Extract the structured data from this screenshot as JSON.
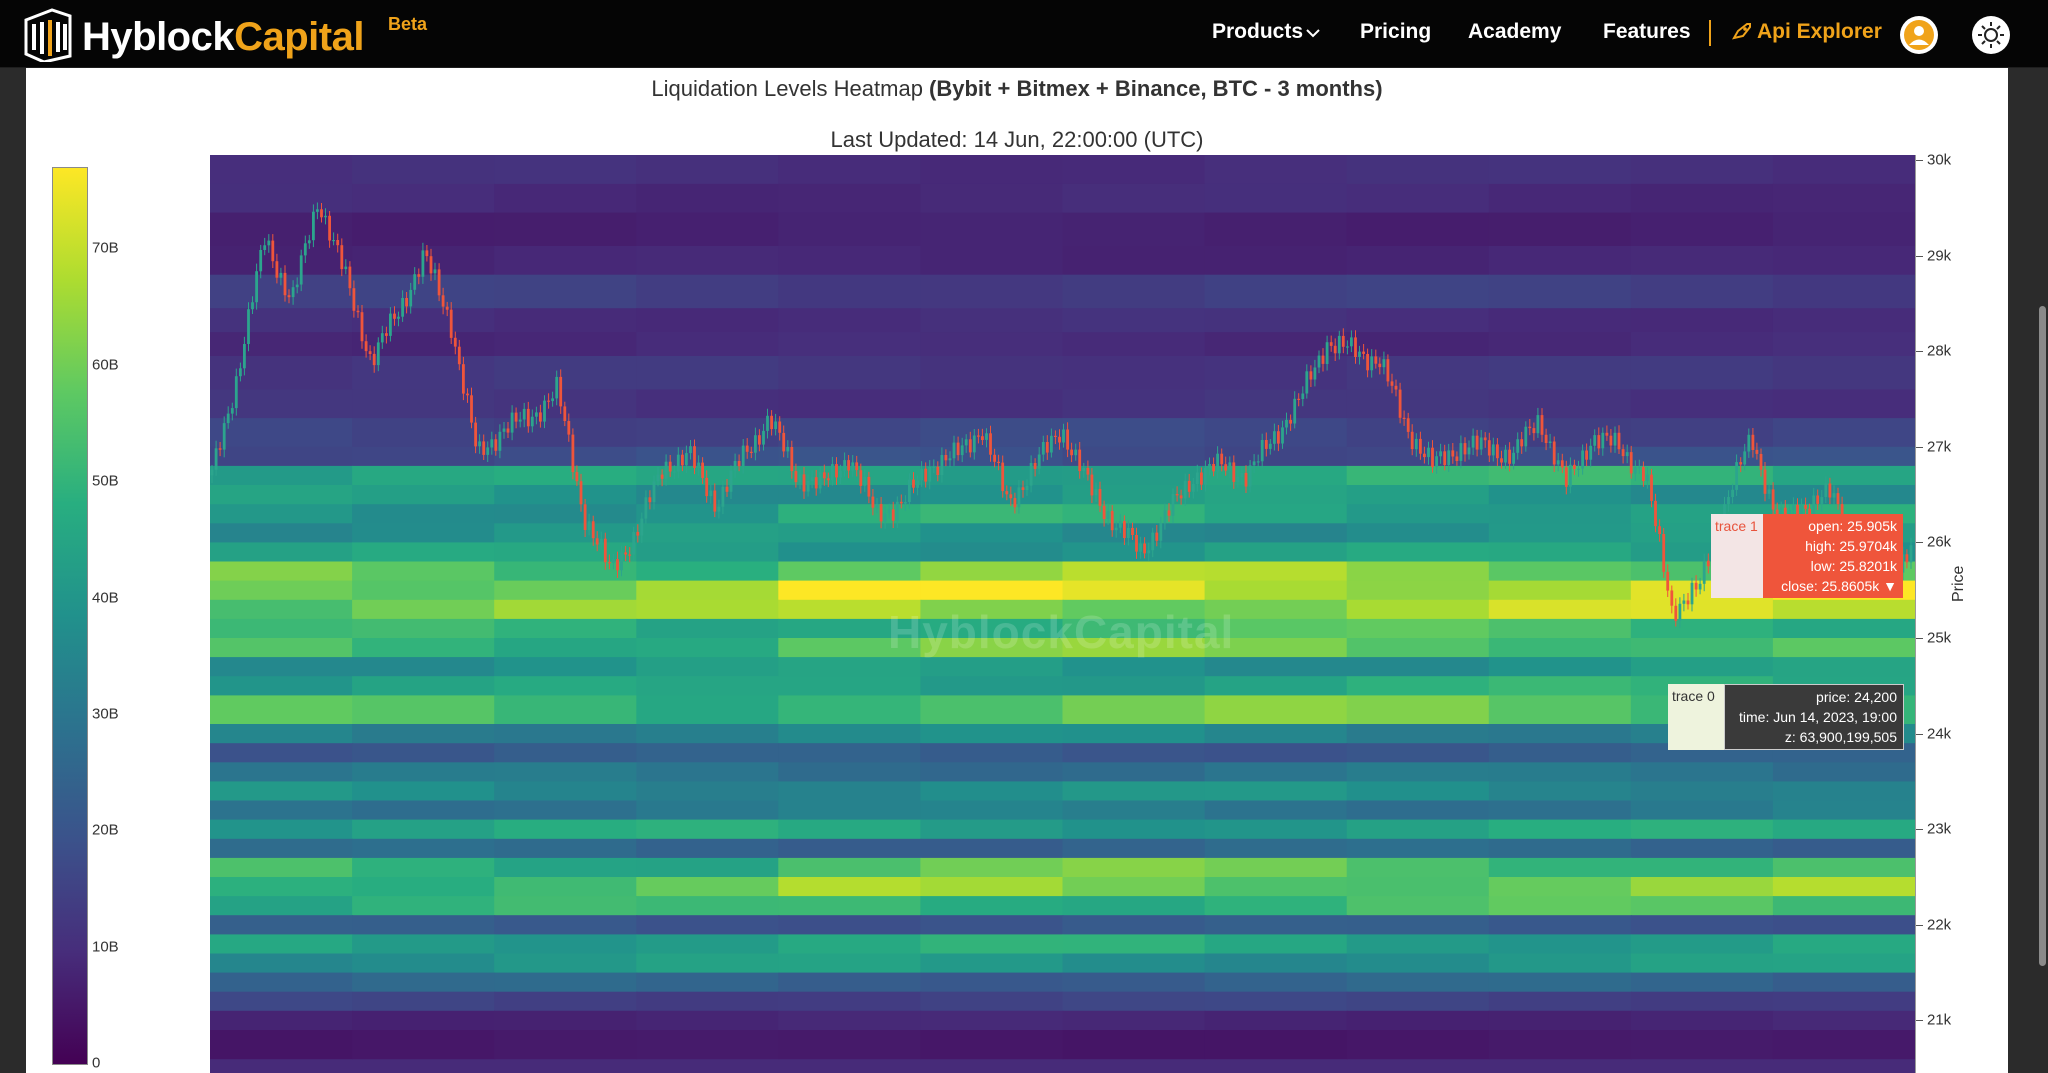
{
  "nav": {
    "brand_main": "Hyblock",
    "brand_accent": "Capital",
    "brand_badge": "Beta",
    "items": [
      "Products",
      "Pricing",
      "Academy",
      "Features"
    ],
    "api_explorer": "Api Explorer",
    "accent_color": "#f0a31a"
  },
  "chart": {
    "title_plain": "Liquidation Levels Heatmap ",
    "title_bold": "(Bybit + Bitmex + Binance, BTC - 3 months)",
    "subtitle": "Last Updated: 14 Jun, 22:00:00 (UTC)",
    "watermark": "HyblockCapital",
    "y_title": "Price"
  },
  "chart_data": {
    "type": "heatmap",
    "overlay": "candlestick",
    "colorscale": "viridis",
    "colorbar_ticks": [
      "0",
      "10B",
      "20B",
      "30B",
      "40B",
      "50B",
      "60B",
      "70B"
    ],
    "colorbar_range": [
      0,
      77
    ],
    "y_ticks": [
      "30k",
      "29k",
      "28k",
      "27k",
      "26k",
      "25k",
      "24k",
      "23k",
      "22k",
      "21k"
    ],
    "y_range": [
      20600,
      30050
    ],
    "price_path": [
      26.7,
      27.8,
      29.2,
      28.5,
      29.6,
      28.8,
      27.9,
      28.4,
      29.0,
      28.3,
      26.9,
      27.2,
      27.3,
      27.6,
      26.3,
      25.7,
      26.1,
      26.8,
      26.9,
      26.4,
      26.9,
      27.3,
      26.7,
      26.6,
      26.9,
      26.3,
      26.4,
      26.8,
      26.9,
      27.2,
      26.4,
      26.8,
      27.2,
      26.6,
      26.2,
      25.9,
      26.3,
      26.7,
      26.8,
      26.7,
      27.1,
      27.5,
      28.1,
      28.0,
      27.9,
      27.2,
      26.8,
      27.0,
      27.0,
      26.9,
      27.3,
      26.6,
      27.1,
      27.0,
      26.7,
      25.3,
      25.5,
      26.4,
      27.1,
      26.2,
      26.4,
      26.5,
      25.9,
      25.6,
      25.9
    ],
    "bands": [
      {
        "lo": 29.75,
        "hi": 30.05,
        "v": 10
      },
      {
        "lo": 29.45,
        "hi": 29.75,
        "v": 9
      },
      {
        "lo": 29.1,
        "hi": 29.45,
        "v": 7
      },
      {
        "lo": 28.8,
        "hi": 29.1,
        "v": 8
      },
      {
        "lo": 28.45,
        "hi": 28.8,
        "v": 14
      },
      {
        "lo": 28.2,
        "hi": 28.45,
        "v": 10
      },
      {
        "lo": 27.95,
        "hi": 28.2,
        "v": 9
      },
      {
        "lo": 27.6,
        "hi": 27.95,
        "v": 12
      },
      {
        "lo": 27.3,
        "hi": 27.6,
        "v": 11
      },
      {
        "lo": 27.0,
        "hi": 27.3,
        "v": 16
      },
      {
        "lo": 26.8,
        "hi": 27.0,
        "v": 18
      },
      {
        "lo": 26.6,
        "hi": 26.8,
        "v": 47
      },
      {
        "lo": 26.4,
        "hi": 26.6,
        "v": 40
      },
      {
        "lo": 26.2,
        "hi": 26.4,
        "v": 46
      },
      {
        "lo": 26.0,
        "hi": 26.2,
        "v": 39
      },
      {
        "lo": 25.8,
        "hi": 26.0,
        "v": 42
      },
      {
        "lo": 25.6,
        "hi": 25.8,
        "v": 62
      },
      {
        "lo": 25.4,
        "hi": 25.6,
        "v": 72
      },
      {
        "lo": 25.2,
        "hi": 25.4,
        "v": 66
      },
      {
        "lo": 25.0,
        "hi": 25.2,
        "v": 52
      },
      {
        "lo": 24.8,
        "hi": 25.0,
        "v": 58
      },
      {
        "lo": 24.6,
        "hi": 24.8,
        "v": 40
      },
      {
        "lo": 24.4,
        "hi": 24.6,
        "v": 46
      },
      {
        "lo": 24.1,
        "hi": 24.4,
        "v": 57
      },
      {
        "lo": 23.9,
        "hi": 24.1,
        "v": 35
      },
      {
        "lo": 23.7,
        "hi": 23.9,
        "v": 22
      },
      {
        "lo": 23.5,
        "hi": 23.7,
        "v": 29
      },
      {
        "lo": 23.3,
        "hi": 23.5,
        "v": 37
      },
      {
        "lo": 23.1,
        "hi": 23.3,
        "v": 31
      },
      {
        "lo": 22.9,
        "hi": 23.1,
        "v": 44
      },
      {
        "lo": 22.7,
        "hi": 22.9,
        "v": 25
      },
      {
        "lo": 22.5,
        "hi": 22.7,
        "v": 56
      },
      {
        "lo": 22.3,
        "hi": 22.5,
        "v": 61
      },
      {
        "lo": 22.1,
        "hi": 22.3,
        "v": 52
      },
      {
        "lo": 21.9,
        "hi": 22.1,
        "v": 21
      },
      {
        "lo": 21.7,
        "hi": 21.9,
        "v": 45
      },
      {
        "lo": 21.5,
        "hi": 21.7,
        "v": 40
      },
      {
        "lo": 21.3,
        "hi": 21.5,
        "v": 24
      },
      {
        "lo": 21.1,
        "hi": 21.3,
        "v": 15
      },
      {
        "lo": 20.9,
        "hi": 21.1,
        "v": 8
      },
      {
        "lo": 20.6,
        "hi": 20.9,
        "v": 5
      }
    ]
  },
  "tooltip_candle": {
    "trace": "trace 1",
    "open": "open: 25.905k",
    "high": "high: 25.9704k",
    "low": "low: 25.8201k",
    "close": "close: 25.8605k ▼"
  },
  "tooltip_heat": {
    "trace": "trace 0",
    "price": "price: 24,200",
    "time": "time: Jun 14, 2023, 19:00",
    "z": "z: 63,900,199,505"
  }
}
